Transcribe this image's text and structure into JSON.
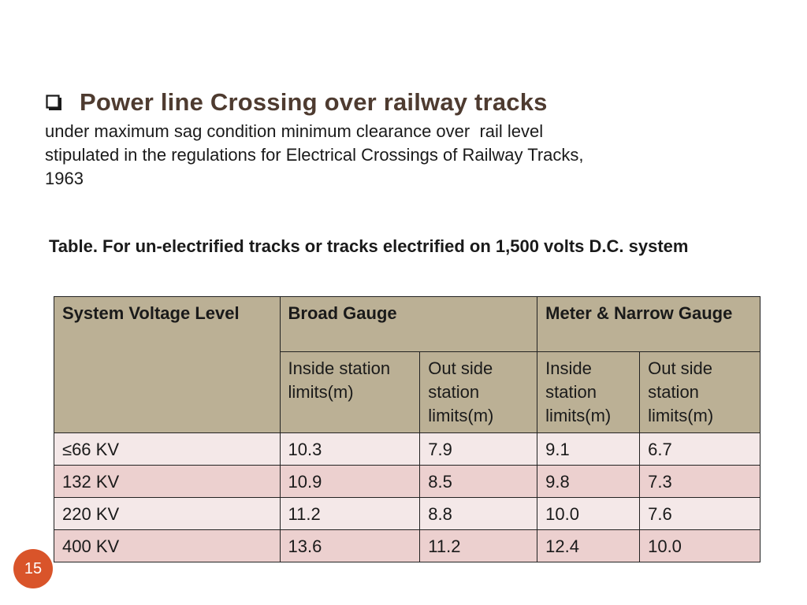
{
  "slide": {
    "bullet_icon": "checkbox-icon",
    "title": "Power line Crossing over railway tracks",
    "subtitle_lines": [
      "under maximum sag condition minimum clearance over  rail level",
      "stipulated in the regulations for Electrical Crossings of Railway Tracks,",
      "1963"
    ],
    "table_caption": "Table. For un-electrified tracks or tracks electrified on 1,500 volts D.C. system",
    "page_number": "15",
    "colors": {
      "title": "#4e3b30",
      "header_bg": "#bbb095",
      "row_light": "#f4e8e8",
      "row_dark": "#ecd0cf",
      "page_badge": "#d9542a"
    }
  },
  "table": {
    "header": {
      "system_voltage": "System Voltage Level",
      "broad_gauge": "Broad Gauge",
      "meter_narrow_gauge": "Meter & Narrow Gauge",
      "sub": [
        "Inside station limits(m)",
        "Out side station limits(m)",
        "Inside station limits(m)",
        "Out side station limits(m)"
      ]
    },
    "rows": [
      [
        "≤66 KV",
        "10.3",
        "7.9",
        "9.1",
        "6.7"
      ],
      [
        "132 KV",
        "10.9",
        "8.5",
        "9.8",
        "7.3"
      ],
      [
        "220 KV",
        "11.2",
        "8.8",
        "10.0",
        "7.6"
      ],
      [
        "400 KV",
        "13.6",
        "11.2",
        "12.4",
        "10.0"
      ]
    ]
  }
}
